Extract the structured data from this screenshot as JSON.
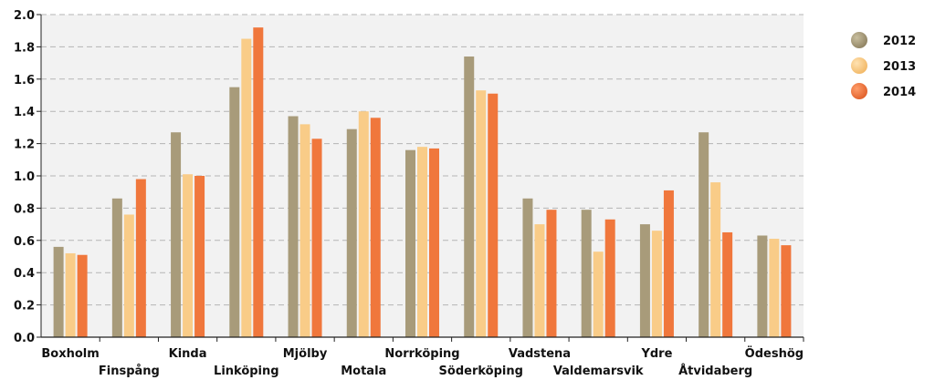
{
  "chart_data": {
    "type": "bar",
    "title": "",
    "xlabel": "",
    "ylabel": "",
    "ylim": [
      0,
      2.0
    ],
    "yticks": [
      "0.0",
      "0.2",
      "0.4",
      "0.6",
      "0.8",
      "1.0",
      "1.2",
      "1.4",
      "1.6",
      "1.8",
      "2.0"
    ],
    "grid": true,
    "legend_position": "top-right",
    "categories": [
      "Boxholm",
      "Finspång",
      "Kinda",
      "Linköping",
      "Mjölby",
      "Motala",
      "Norrköping",
      "Söderköping",
      "Vadstena",
      "Valdemarsvik",
      "Ydre",
      "Åtvidaberg",
      "Ödeshög"
    ],
    "series": [
      {
        "name": "2012",
        "color": "#a89b7a",
        "values": [
          0.56,
          0.86,
          1.27,
          1.55,
          1.37,
          1.29,
          1.16,
          1.74,
          0.86,
          0.79,
          0.7,
          1.27,
          0.63
        ]
      },
      {
        "name": "2013",
        "color": "#f9cc88",
        "values": [
          0.52,
          0.76,
          1.01,
          1.85,
          1.32,
          1.4,
          1.18,
          1.53,
          0.7,
          0.53,
          0.66,
          0.96,
          0.61
        ]
      },
      {
        "name": "2014",
        "color": "#f0773c",
        "values": [
          0.51,
          0.98,
          1.0,
          1.92,
          1.23,
          1.36,
          1.17,
          1.51,
          0.79,
          0.73,
          0.91,
          0.65,
          0.57
        ]
      }
    ]
  }
}
